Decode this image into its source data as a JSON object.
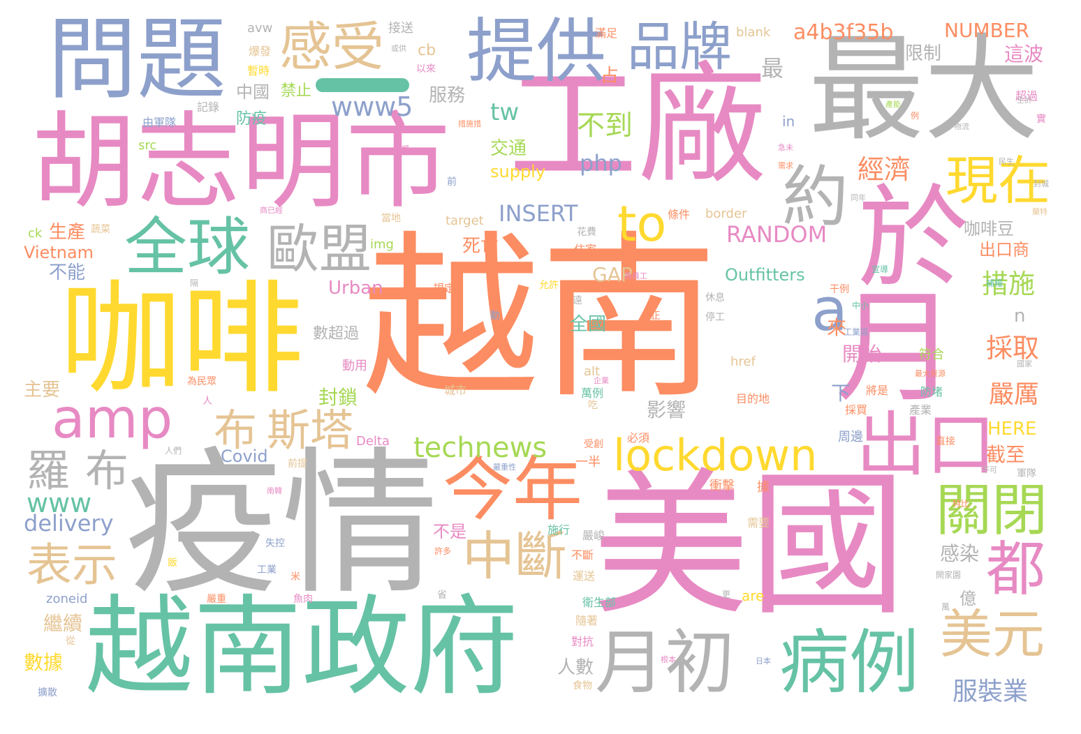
{
  "palette": {
    "coral": "#fc8d62",
    "teal": "#66c2a5",
    "blue": "#8da0cb",
    "pink": "#e78ac3",
    "green": "#a6d854",
    "yellow": "#ffd92f",
    "tan": "#e5c494",
    "gray": "#b3b3b3"
  },
  "words": [
    "越南",
    "美國",
    "疫情",
    "工廠",
    "越南政府",
    "胡志明市",
    "咖啡",
    "最大",
    "問題",
    "於",
    "月",
    "提供",
    "品牌",
    "感受",
    "全球",
    "歐盟",
    "約",
    "現在",
    "to",
    "a",
    "amp",
    "出口",
    "今年",
    "中斷",
    "月初",
    "病例",
    "美元",
    "都",
    "關閉",
    "表示",
    "羅",
    "布",
    "布",
    "斯塔",
    "lockdown",
    "technews",
    "www",
    "delivery",
    "服裝業",
    "www5",
    "tw",
    "不到",
    "php",
    "a4b3f35b",
    "NUMBER",
    "最",
    "經濟",
    "INSERT",
    "RANDOM",
    "Outfitters",
    "Urban",
    "採取",
    "嚴厲",
    "措施",
    "交通",
    "supply",
    "服務",
    "中國",
    "禁止",
    "防疫",
    "cb",
    "死亡",
    "生產",
    "Vietnam",
    "不能",
    "GAP",
    "咖啡豆",
    "出口商",
    "這波",
    "限制",
    "開始",
    "來",
    "下",
    "封鎖",
    "主要",
    "人數",
    "影響",
    "數超過",
    "全國",
    "不是",
    "感染",
    "億",
    "截至",
    "HERE",
    "Covid",
    "Delta",
    "一半",
    "繼續",
    "數據",
    "zoneid",
    "are",
    "border",
    "blank",
    "target",
    "img",
    "alt",
    "href",
    "avw",
    "src",
    "ck",
    "n",
    "in",
    "接送",
    "爆發",
    "暫時",
    "以來",
    "記錄",
    "由軍隊",
    "占",
    "滿足",
    "或供",
    "超過",
    "條件",
    "規定",
    "允許",
    "住家",
    "花費",
    "蔬菜",
    "當地",
    "中小",
    "工業區",
    "停工",
    "符合",
    "最大資源",
    "防堵",
    "產業",
    "周邊",
    "直接",
    "軍隊",
    "不可",
    "將是",
    "採買",
    "目的地",
    "萬例",
    "吃",
    "動用",
    "城市",
    "必須",
    "受創",
    "衝擊",
    "據",
    "需要",
    "施行",
    "嚴峻",
    "不斷",
    "運送",
    "衛生部",
    "隨著",
    "對抗",
    "食物",
    "米",
    "魚肉",
    "省",
    "嚴重",
    "工業",
    "失控",
    "許多",
    "更",
    "日本",
    "根本",
    "擴散",
    "從",
    "人們",
    "飯",
    "為民眾",
    "人",
    "隔",
    "前",
    "動",
    "正",
    "休息",
    "特比",
    "補糧",
    "宣導",
    "實",
    "例",
    "開家園",
    "萬",
    "商已經",
    "前提",
    "遠",
    "嚴重性",
    "南韓",
    "干例",
    "蘭特",
    "企業",
    "為員工",
    "同年",
    "急未",
    "物流",
    "封城",
    "國家",
    "民生",
    "措施措",
    "照顧",
    "需求",
    "生計",
    "產能"
  ]
}
